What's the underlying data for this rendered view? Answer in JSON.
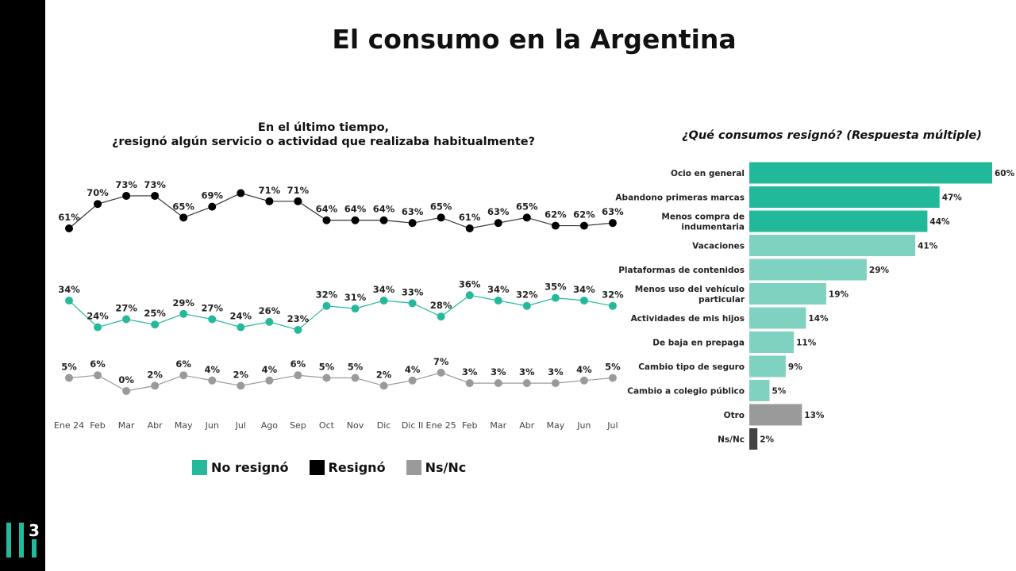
{
  "title": "El consumo en la Argentina",
  "logo_text": "3",
  "chart_data": [
    {
      "type": "line",
      "title_line1": "En el último tiempo,",
      "title_line2": "¿resignó algún servicio o actividad que realizaba habitualmente?",
      "categories": [
        "Ene 24",
        "Feb",
        "Mar",
        "Abr",
        "May",
        "Jun",
        "Jul",
        "Ago",
        "Sep",
        "Oct",
        "Nov",
        "Dic",
        "Dic II",
        "Ene 25",
        "Feb",
        "Mar",
        "Abr",
        "May",
        "Jun",
        "Jul"
      ],
      "series": [
        {
          "name": "Resignó",
          "color": "#000000",
          "values": [
            61,
            70,
            73,
            73,
            65,
            69,
            74,
            71,
            71,
            64,
            64,
            64,
            63,
            65,
            61,
            63,
            65,
            62,
            62,
            63
          ],
          "labels": [
            "61%",
            "70%",
            "73%",
            "73%",
            "65%",
            "69%",
            "",
            "71%",
            "71%",
            "64%",
            "64%",
            "64%",
            "63%",
            "65%",
            "61%",
            "63%",
            "65%",
            "62%",
            "62%",
            "63%"
          ]
        },
        {
          "name": "No resignó",
          "color": "#25b99b",
          "values": [
            34,
            24,
            27,
            25,
            29,
            27,
            24,
            26,
            23,
            32,
            31,
            34,
            33,
            28,
            36,
            34,
            32,
            35,
            34,
            32
          ],
          "labels": [
            "34%",
            "24%",
            "27%",
            "25%",
            "29%",
            "27%",
            "24%",
            "26%",
            "23%",
            "32%",
            "31%",
            "34%",
            "33%",
            "28%",
            "36%",
            "34%",
            "32%",
            "35%",
            "34%",
            "32%"
          ]
        },
        {
          "name": "Ns/Nc",
          "color": "#9a9a9a",
          "values": [
            5,
            6,
            0,
            2,
            6,
            4,
            2,
            4,
            6,
            5,
            5,
            2,
            4,
            7,
            3,
            3,
            3,
            3,
            4,
            5
          ],
          "labels": [
            "5%",
            "6%",
            "0%",
            "2%",
            "6%",
            "4%",
            "2%",
            "4%",
            "6%",
            "5%",
            "5%",
            "2%",
            "4%",
            "7%",
            "3%",
            "3%",
            "3%",
            "3%",
            "4%",
            "5%"
          ]
        }
      ],
      "legend": [
        "No resignó",
        "Resignó",
        "Ns/Nc"
      ],
      "legend_position": "bottom",
      "grid": false
    },
    {
      "type": "bar",
      "orientation": "horizontal",
      "title": "¿Qué consumos resignó? (Respuesta múltiple)",
      "categories": [
        "Ocio en general",
        "Abandono primeras marcas",
        "Menos compra de\nindumentaria",
        "Vacaciones",
        "Plataformas de contenidos",
        "Menos uso del vehículo\nparticular",
        "Actividades de mis hijos",
        "De baja en prepaga",
        "Cambio tipo de seguro",
        "Cambio a colegio público",
        "Otro",
        "Ns/Nc"
      ],
      "values": [
        60,
        47,
        44,
        41,
        29,
        19,
        14,
        11,
        9,
        5,
        13,
        2
      ],
      "value_labels": [
        "60%",
        "47%",
        "44%",
        "41%",
        "29%",
        "19%",
        "14%",
        "11%",
        "9%",
        "5%",
        "13%",
        "2%"
      ],
      "colors": [
        "#22b89a",
        "#22b89a",
        "#22b89a",
        "#80d2c0",
        "#80d2c0",
        "#80d2c0",
        "#80d2c0",
        "#80d2c0",
        "#80d2c0",
        "#80d2c0",
        "#9a9a9a",
        "#444444"
      ],
      "grid": false
    }
  ]
}
